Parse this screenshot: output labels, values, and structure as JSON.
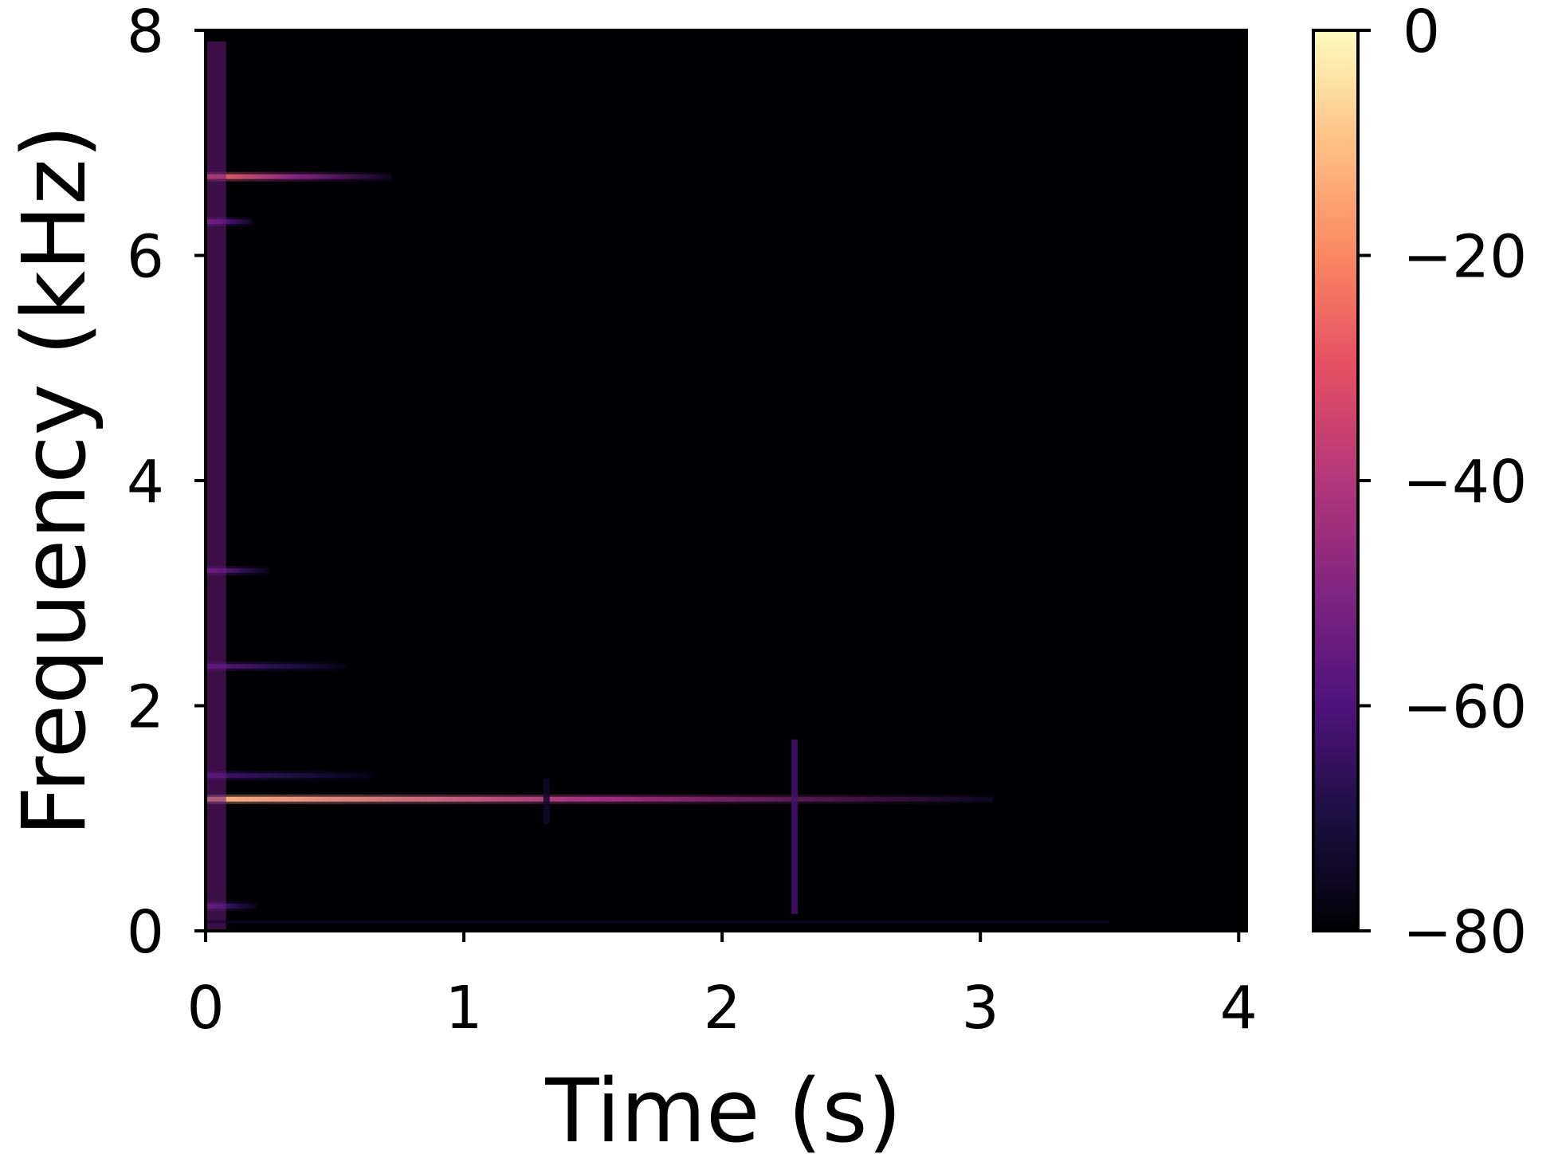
{
  "chart_data": {
    "type": "heatmap",
    "xlabel": "Time (s)",
    "ylabel": "Frequency (kHz)",
    "xlim": [
      0,
      4.03
    ],
    "ylim": [
      0,
      8
    ],
    "xticks": [
      {
        "value": 0,
        "label": "0"
      },
      {
        "value": 1,
        "label": "1"
      },
      {
        "value": 2,
        "label": "2"
      },
      {
        "value": 3,
        "label": "3"
      },
      {
        "value": 4,
        "label": "4"
      }
    ],
    "yticks": [
      {
        "value": 0,
        "label": "0"
      },
      {
        "value": 2,
        "label": "2"
      },
      {
        "value": 4,
        "label": "4"
      },
      {
        "value": 6,
        "label": "6"
      },
      {
        "value": 8,
        "label": "8"
      }
    ],
    "colorbar": {
      "range": [
        -80,
        0
      ],
      "colormap": "magma",
      "ticks": [
        {
          "value": 0,
          "label": "0"
        },
        {
          "value": -20,
          "label": "−20"
        },
        {
          "value": -40,
          "label": "−40"
        },
        {
          "value": -60,
          "label": "−60"
        },
        {
          "value": -80,
          "label": "−80"
        }
      ]
    },
    "background_level_db": -80,
    "features": [
      {
        "kind": "harmonic",
        "freq_khz": 1.17,
        "t_start": 0.0,
        "t_end": 3.05,
        "db_start": -12,
        "db_end": -76
      },
      {
        "kind": "harmonic",
        "freq_khz": 6.7,
        "t_start": 0.0,
        "t_end": 0.72,
        "db_start": -25,
        "db_end": -76
      },
      {
        "kind": "harmonic",
        "freq_khz": 6.3,
        "t_start": 0.0,
        "t_end": 0.18,
        "db_start": -48,
        "db_end": -76
      },
      {
        "kind": "harmonic",
        "freq_khz": 3.2,
        "t_start": 0.0,
        "t_end": 0.25,
        "db_start": -52,
        "db_end": -78
      },
      {
        "kind": "harmonic",
        "freq_khz": 2.35,
        "t_start": 0.0,
        "t_end": 0.55,
        "db_start": -58,
        "db_end": -78
      },
      {
        "kind": "harmonic",
        "freq_khz": 1.38,
        "t_start": 0.0,
        "t_end": 0.65,
        "db_start": -62,
        "db_end": -78
      },
      {
        "kind": "harmonic",
        "freq_khz": 0.22,
        "t_start": 0.0,
        "t_end": 0.2,
        "db_start": -55,
        "db_end": -78
      },
      {
        "kind": "onset",
        "t": 0.03,
        "f_min_khz": 0.0,
        "f_max_khz": 7.9,
        "db": -55
      },
      {
        "kind": "transient",
        "t": 2.28,
        "f_min_khz": 0.15,
        "f_max_khz": 1.7,
        "db": -62
      },
      {
        "kind": "transient",
        "t": 1.32,
        "f_min_khz": 0.95,
        "f_max_khz": 1.35,
        "db": -74
      }
    ]
  }
}
